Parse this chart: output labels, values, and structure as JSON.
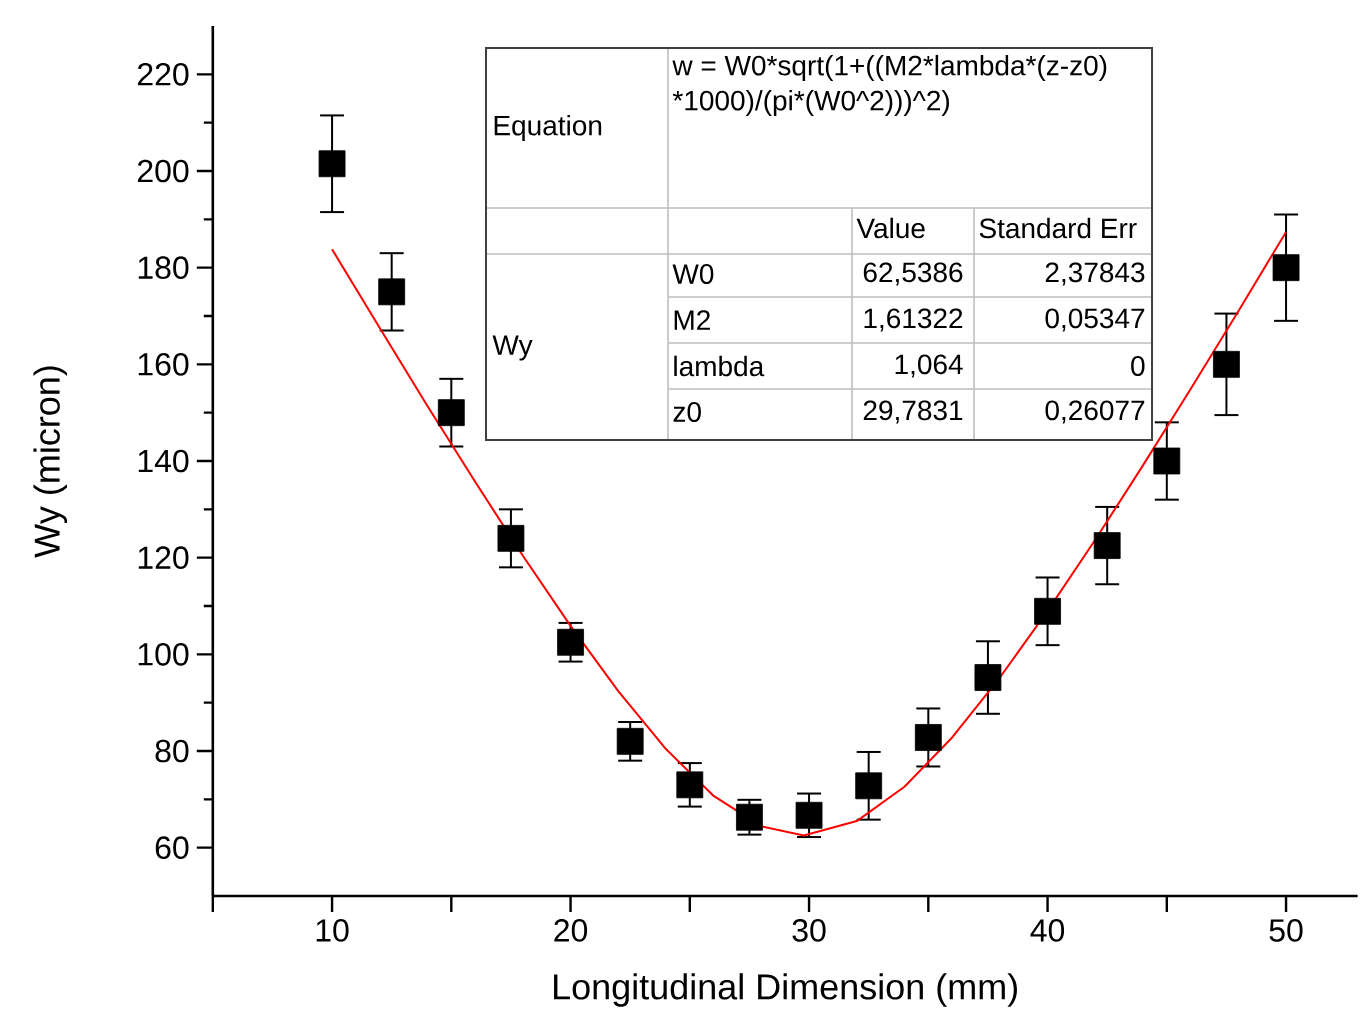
{
  "chart_data": {
    "type": "scatter",
    "xlabel": "Longitudinal Dimension (mm)",
    "ylabel": "Wy (micron)",
    "xlim": [
      5,
      53
    ],
    "ylim": [
      50,
      230
    ],
    "xticks": [
      {
        "value": 5,
        "label": null
      },
      10,
      {
        "value": 15,
        "label": null
      },
      20,
      {
        "value": 25,
        "label": null
      },
      30,
      {
        "value": 35,
        "label": null
      },
      40,
      {
        "value": 45,
        "label": null
      },
      50
    ],
    "yticks": [
      60,
      {
        "value": 70,
        "label": null
      },
      80,
      {
        "value": 90,
        "label": null
      },
      100,
      {
        "value": 110,
        "label": null
      },
      120,
      {
        "value": 130,
        "label": null
      },
      140,
      {
        "value": 150,
        "label": null
      },
      160,
      {
        "value": 170,
        "label": null
      },
      180,
      {
        "value": 190,
        "label": null
      },
      200,
      {
        "value": 210,
        "label": null
      },
      220
    ],
    "marker": "square",
    "series": [
      {
        "color": "#000000",
        "x": [
          10,
          12.5,
          15,
          17.5,
          20,
          22.5,
          25,
          27.5,
          30,
          32.5,
          35,
          37.5,
          40,
          42.5,
          45,
          47.5,
          50
        ],
        "values": [
          201.5,
          175,
          150,
          124,
          102.5,
          82,
          73,
          66.3,
          66.7,
          72.8,
          82.8,
          95.2,
          108.9,
          122.5,
          140,
          160,
          180
        ],
        "errors": [
          10,
          8,
          7,
          6,
          4,
          4,
          4.5,
          3.6,
          4.5,
          7,
          6,
          7.5,
          7,
          8,
          8,
          10.5,
          11
        ]
      },
      {
        "type": "line",
        "color": "#ff0000",
        "marker": "none",
        "x": [
          10,
          12,
          14,
          16,
          18,
          20,
          22,
          24,
          26,
          28,
          29.78,
          32,
          34,
          36,
          38,
          40,
          42,
          44,
          46,
          48,
          50
        ],
        "values": [
          183.8,
          167.5,
          151.4,
          135.7,
          120.4,
          105.9,
          92.4,
          80.4,
          70.7,
          64.4,
          62.5,
          65.5,
          72.6,
          82.8,
          95.2,
          109.0,
          123.7,
          139.1,
          154.9,
          171.0,
          187.4
        ]
      }
    ],
    "annotations": [
      "Equation",
      "w = W0*sqrt(1+((M2*lambda*(z-z0)",
      "*1000)/(pi",
      "*(W0^2)))^2)",
      "Value",
      "Standard Err",
      "Wy",
      "W0",
      "62,5386",
      "2,37843",
      "M2",
      "1,61322",
      "0,05347",
      "lambda",
      "1,064",
      "0",
      "z0",
      "29,7831",
      "0,26077"
    ]
  }
}
